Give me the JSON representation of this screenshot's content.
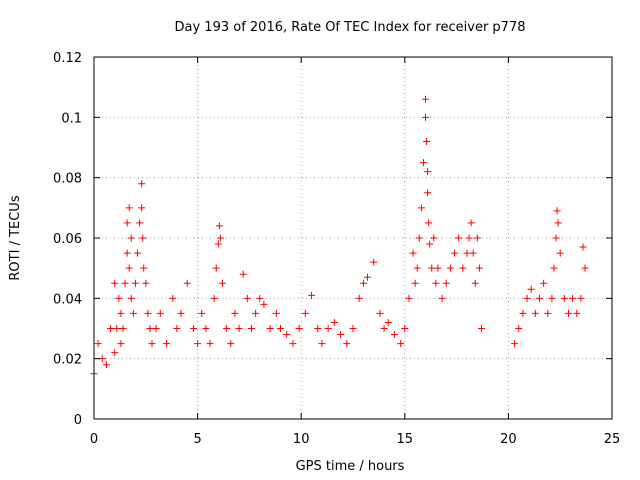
{
  "chart_data": {
    "type": "scatter",
    "title": "Day 193 of 2016, Rate Of TEC Index for receiver p778",
    "xlabel": "GPS time / hours",
    "ylabel": "ROTI / TECUs",
    "xlim": [
      0,
      25
    ],
    "ylim": [
      0,
      0.12
    ],
    "x_ticks": [
      0,
      5,
      10,
      15,
      20,
      25
    ],
    "x_tick_labels": [
      "0",
      "5",
      "10",
      "15",
      "20",
      "25"
    ],
    "y_ticks": [
      0,
      0.02,
      0.04,
      0.06,
      0.08,
      0.1,
      0.12
    ],
    "y_tick_labels": [
      "0",
      "0.02",
      "0.04",
      "0.06",
      "0.08",
      "0.1",
      "0.12"
    ],
    "grid": true,
    "marker": "+",
    "marker_color": "#ff0000",
    "data_gap_hours": [
      18.7,
      20.3
    ],
    "series": [
      {
        "name": "ROTI",
        "x": [
          0.0,
          0.2,
          0.4,
          0.6,
          0.8,
          1.0,
          1.0,
          1.1,
          1.2,
          1.3,
          1.3,
          1.4,
          1.5,
          1.6,
          1.6,
          1.7,
          1.7,
          1.8,
          1.8,
          1.9,
          2.0,
          2.1,
          2.2,
          2.3,
          2.3,
          2.35,
          2.4,
          2.5,
          2.6,
          2.7,
          2.8,
          3.0,
          3.2,
          3.5,
          3.8,
          4.0,
          4.2,
          4.5,
          4.8,
          5.0,
          5.2,
          5.4,
          5.6,
          5.8,
          5.9,
          6.0,
          6.05,
          6.1,
          6.2,
          6.4,
          6.6,
          6.8,
          7.0,
          7.2,
          7.4,
          7.6,
          7.8,
          8.0,
          8.2,
          8.5,
          8.8,
          9.0,
          9.3,
          9.6,
          9.9,
          10.2,
          10.5,
          10.8,
          11.0,
          11.3,
          11.6,
          11.9,
          12.2,
          12.5,
          12.8,
          13.0,
          13.2,
          13.5,
          13.8,
          14.0,
          14.2,
          14.5,
          14.8,
          15.0,
          15.2,
          15.4,
          15.5,
          15.6,
          15.7,
          15.8,
          15.9,
          16.0,
          16.0,
          16.05,
          16.1,
          16.1,
          16.15,
          16.2,
          16.3,
          16.4,
          16.5,
          16.6,
          16.8,
          17.0,
          17.2,
          17.4,
          17.6,
          17.8,
          18.0,
          18.1,
          18.2,
          18.3,
          18.4,
          18.5,
          18.6,
          18.7,
          20.3,
          20.5,
          20.7,
          20.9,
          21.1,
          21.3,
          21.5,
          21.7,
          21.9,
          22.1,
          22.2,
          22.3,
          22.35,
          22.4,
          22.5,
          22.7,
          22.9,
          23.1,
          23.3,
          23.5,
          23.6,
          23.7
        ],
        "y": [
          0.015,
          0.025,
          0.02,
          0.018,
          0.03,
          0.022,
          0.045,
          0.03,
          0.04,
          0.025,
          0.035,
          0.03,
          0.045,
          0.055,
          0.065,
          0.07,
          0.05,
          0.04,
          0.06,
          0.035,
          0.045,
          0.055,
          0.065,
          0.078,
          0.07,
          0.06,
          0.05,
          0.045,
          0.035,
          0.03,
          0.025,
          0.03,
          0.035,
          0.025,
          0.04,
          0.03,
          0.035,
          0.045,
          0.03,
          0.025,
          0.035,
          0.03,
          0.025,
          0.04,
          0.05,
          0.058,
          0.064,
          0.06,
          0.045,
          0.03,
          0.025,
          0.035,
          0.03,
          0.048,
          0.04,
          0.03,
          0.035,
          0.04,
          0.038,
          0.03,
          0.035,
          0.03,
          0.028,
          0.025,
          0.03,
          0.035,
          0.041,
          0.03,
          0.025,
          0.03,
          0.032,
          0.028,
          0.025,
          0.03,
          0.04,
          0.045,
          0.047,
          0.052,
          0.035,
          0.03,
          0.032,
          0.028,
          0.025,
          0.03,
          0.04,
          0.055,
          0.045,
          0.05,
          0.06,
          0.07,
          0.085,
          0.1,
          0.106,
          0.092,
          0.082,
          0.075,
          0.065,
          0.058,
          0.05,
          0.06,
          0.045,
          0.05,
          0.04,
          0.045,
          0.05,
          0.055,
          0.06,
          0.05,
          0.055,
          0.06,
          0.065,
          0.055,
          0.045,
          0.06,
          0.05,
          0.03,
          0.025,
          0.03,
          0.035,
          0.04,
          0.043,
          0.035,
          0.04,
          0.045,
          0.035,
          0.04,
          0.05,
          0.06,
          0.069,
          0.065,
          0.055,
          0.04,
          0.035,
          0.04,
          0.035,
          0.04,
          0.057,
          0.05
        ]
      }
    ]
  }
}
